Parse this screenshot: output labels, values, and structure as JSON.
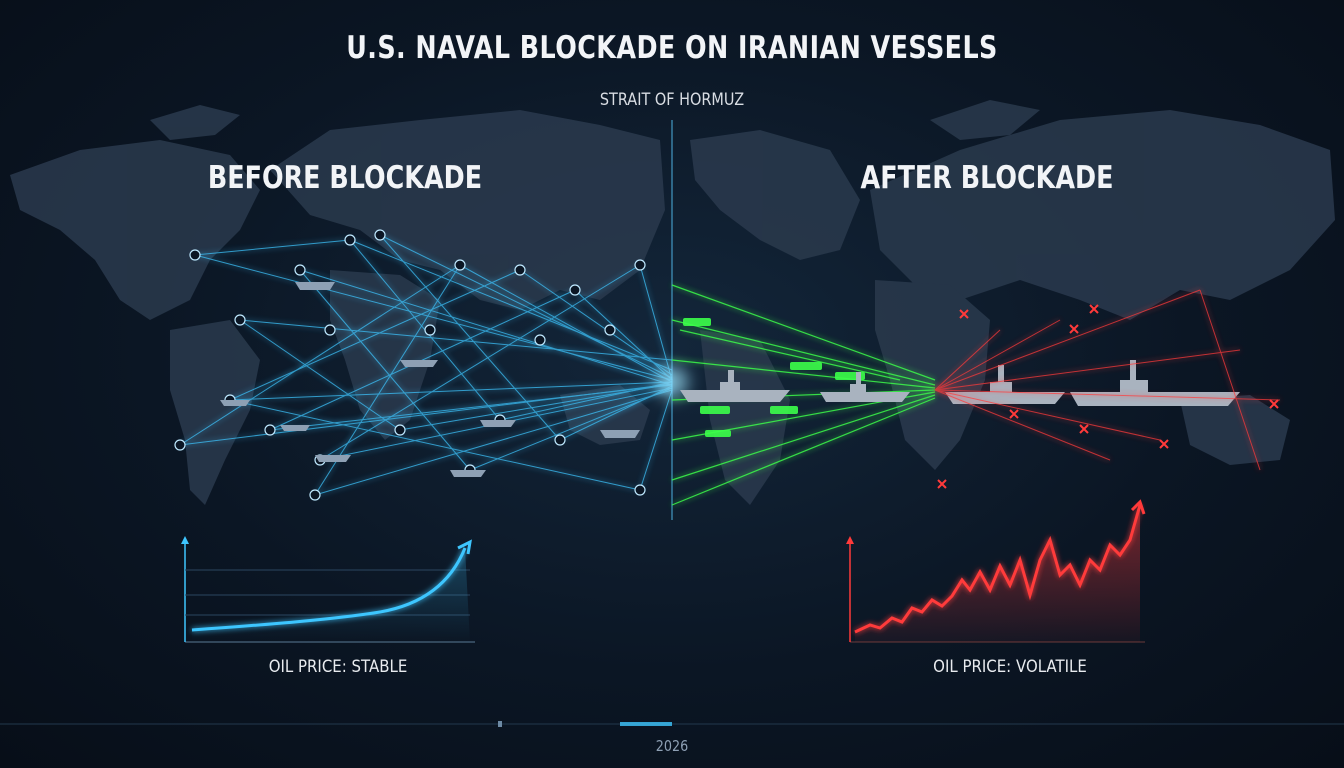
{
  "header": {
    "title": "U.S. NAVAL BLOCKADE ON IRANIAN VESSELS",
    "subtitle": "STRAIT OF HORMUZ"
  },
  "panels": {
    "before": {
      "title": "BEFORE BLOCKADE",
      "caption": "OIL PRICE: STABLE",
      "color": "#3ec6ff"
    },
    "after": {
      "title": "AFTER BLOCKADE",
      "caption": "OIL PRICE: VOLATILE",
      "color": "#ff3a3a"
    },
    "transition_color": "#3cff4a"
  },
  "timeline": {
    "year": "2026"
  }
}
